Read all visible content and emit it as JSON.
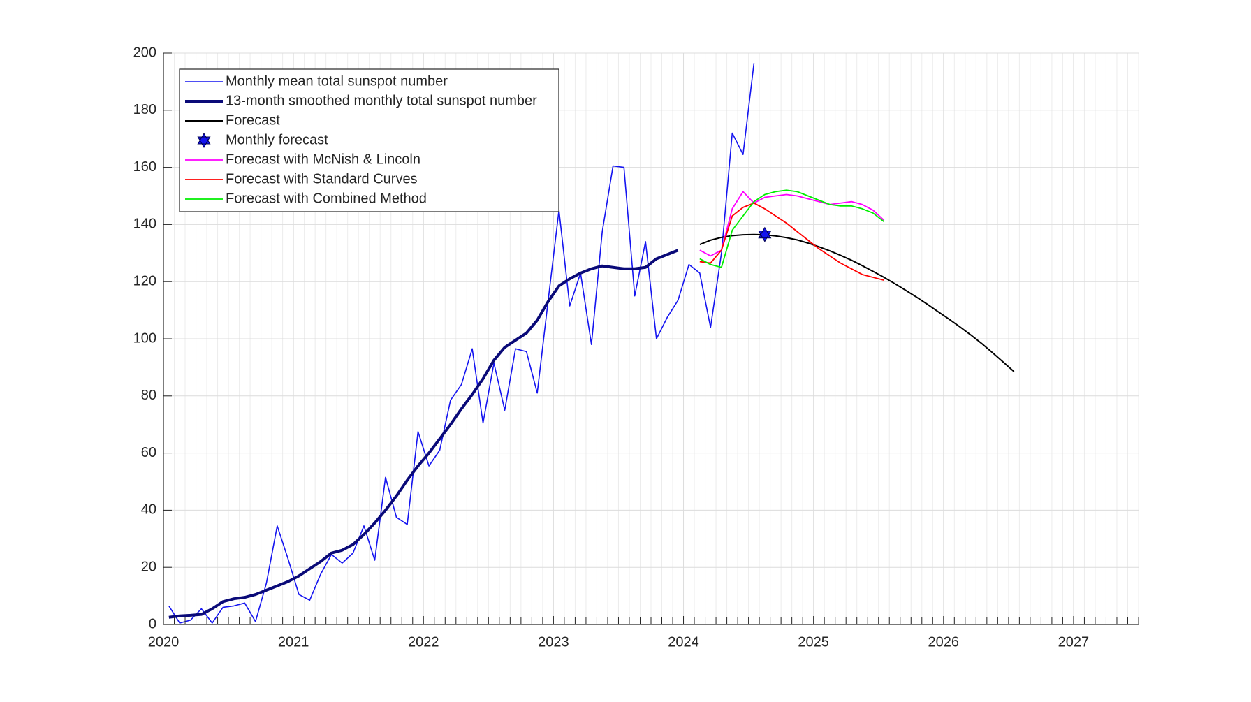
{
  "chart_data": {
    "type": "line",
    "xlim": [
      2020,
      2027.5
    ],
    "xticks": [
      2020,
      2021,
      2022,
      2023,
      2024,
      2025,
      2026,
      2027
    ],
    "ylim": [
      0,
      200
    ],
    "yticks": [
      0,
      20,
      40,
      60,
      80,
      100,
      120,
      140,
      160,
      180,
      200
    ],
    "grid": true,
    "minor_grid": true,
    "legend": "northwest",
    "series": [
      {
        "name": "Monthly mean total sunspot number",
        "color": "#1414f0",
        "line_width": 1.6,
        "x": [
          2020.042,
          2020.125,
          2020.208,
          2020.292,
          2020.375,
          2020.458,
          2020.542,
          2020.625,
          2020.708,
          2020.792,
          2020.875,
          2020.958,
          2021.042,
          2021.125,
          2021.208,
          2021.292,
          2021.375,
          2021.458,
          2021.542,
          2021.625,
          2021.708,
          2021.792,
          2021.875,
          2021.958,
          2022.042,
          2022.125,
          2022.208,
          2022.292,
          2022.375,
          2022.458,
          2022.542,
          2022.625,
          2022.708,
          2022.792,
          2022.875,
          2022.958,
          2023.042,
          2023.125,
          2023.208,
          2023.292,
          2023.375,
          2023.458,
          2023.542,
          2023.625,
          2023.708,
          2023.792,
          2023.875,
          2023.958,
          2024.042,
          2024.125,
          2024.208,
          2024.292,
          2024.375,
          2024.458,
          2024.542
        ],
        "values": [
          6.5,
          0.5,
          1.5,
          5.5,
          0.5,
          6,
          6.5,
          7.5,
          1,
          14.5,
          34.5,
          23,
          10.5,
          8.5,
          17.5,
          24.5,
          21.5,
          25,
          34.5,
          22.5,
          51.5,
          37.5,
          35,
          67.5,
          55.5,
          61,
          78.5,
          84,
          96.5,
          70.5,
          91.5,
          75,
          96.5,
          95.5,
          81,
          113,
          145,
          111.5,
          123,
          98,
          137.5,
          160.5,
          160,
          115,
          134,
          100,
          107.5,
          113.5,
          126,
          123,
          104,
          130,
          172,
          164.5,
          196.5
        ]
      },
      {
        "name": "13-month smoothed monthly total sunspot number",
        "color": "#0a0a78",
        "line_width": 4,
        "x": [
          2020.042,
          2020.125,
          2020.208,
          2020.292,
          2020.375,
          2020.458,
          2020.542,
          2020.625,
          2020.708,
          2020.792,
          2020.875,
          2020.958,
          2021.042,
          2021.125,
          2021.208,
          2021.292,
          2021.375,
          2021.458,
          2021.542,
          2021.625,
          2021.708,
          2021.792,
          2021.875,
          2021.958,
          2022.042,
          2022.125,
          2022.208,
          2022.292,
          2022.375,
          2022.458,
          2022.542,
          2022.625,
          2022.708,
          2022.792,
          2022.875,
          2022.958,
          2023.042,
          2023.125,
          2023.208,
          2023.292,
          2023.375,
          2023.458,
          2023.542,
          2023.625,
          2023.708,
          2023.792,
          2023.875,
          2023.958
        ],
        "values": [
          2.5,
          3,
          3.2,
          3.5,
          5.5,
          8,
          9,
          9.5,
          10.5,
          12,
          13.5,
          15,
          17,
          19.5,
          22,
          25,
          26,
          28,
          31.5,
          35.5,
          40,
          45,
          50.5,
          55.5,
          60,
          65,
          70,
          75.5,
          80.5,
          86,
          92.5,
          97,
          99.5,
          102,
          106.5,
          113,
          118.5,
          121,
          123,
          124.5,
          125.5,
          125,
          124.5,
          124.5,
          125,
          128,
          129.5,
          131
        ]
      },
      {
        "name": "Forecast",
        "color": "#000000",
        "line_width": 2,
        "x": [
          2024.125,
          2024.208,
          2024.292,
          2024.375,
          2024.458,
          2024.542,
          2024.625,
          2024.708,
          2024.792,
          2024.875,
          2024.958,
          2025.042,
          2025.125,
          2025.208,
          2025.292,
          2025.375,
          2025.458,
          2025.542,
          2025.625,
          2025.708,
          2025.792,
          2025.875,
          2025.958,
          2026.042,
          2026.125,
          2026.208,
          2026.292,
          2026.375,
          2026.458,
          2026.542
        ],
        "values": [
          133,
          134.5,
          135.5,
          136.1,
          136.4,
          136.5,
          136.4,
          136,
          135.4,
          134.6,
          133.5,
          132.2,
          130.8,
          129.2,
          127.5,
          125.6,
          123.6,
          121.5,
          119.3,
          117,
          114.6,
          112.1,
          109.5,
          106.9,
          104.2,
          101.4,
          98.4,
          95.2,
          91.9,
          88.5
        ]
      },
      {
        "name": "Monthly forecast",
        "color": "#1414f0",
        "marker": "hexagram",
        "x": [
          2024.625
        ],
        "values": [
          136.5
        ]
      },
      {
        "name": "Forecast with McNish & Lincoln",
        "color": "#ff00ff",
        "line_width": 1.8,
        "x": [
          2024.125,
          2024.208,
          2024.292,
          2024.375,
          2024.458,
          2024.542,
          2024.625,
          2024.708,
          2024.792,
          2024.875,
          2024.958,
          2025.042,
          2025.125,
          2025.208,
          2025.292,
          2025.375,
          2025.458,
          2025.542
        ],
        "values": [
          131,
          129,
          131,
          145.5,
          151.5,
          147.5,
          149.5,
          150,
          150.5,
          150,
          149,
          148,
          147,
          147.5,
          148,
          147,
          145,
          141.5
        ]
      },
      {
        "name": "Forecast with Standard Curves",
        "color": "#ff0000",
        "line_width": 1.8,
        "x": [
          2024.125,
          2024.208,
          2024.292,
          2024.375,
          2024.458,
          2024.542,
          2024.625,
          2024.708,
          2024.792,
          2024.875,
          2024.958,
          2025.042,
          2025.125,
          2025.208,
          2025.292,
          2025.375,
          2025.458,
          2025.542
        ],
        "values": [
          127,
          126.5,
          131,
          143,
          146,
          147.5,
          145.5,
          143,
          140.5,
          137.5,
          134.5,
          131.5,
          129,
          126.5,
          124.5,
          122.5,
          121.5,
          120.5
        ]
      },
      {
        "name": "Forecast with Combined Method",
        "color": "#00ee00",
        "line_width": 1.8,
        "x": [
          2024.125,
          2024.208,
          2024.292,
          2024.375,
          2024.458,
          2024.542,
          2024.625,
          2024.708,
          2024.792,
          2024.875,
          2024.958,
          2025.042,
          2025.125,
          2025.208,
          2025.292,
          2025.375,
          2025.458,
          2025.542
        ],
        "values": [
          128,
          126,
          125,
          138,
          143,
          148,
          150.5,
          151.5,
          152,
          151.5,
          150,
          148.5,
          147,
          146.5,
          146.5,
          145.5,
          144,
          141
        ]
      }
    ]
  }
}
